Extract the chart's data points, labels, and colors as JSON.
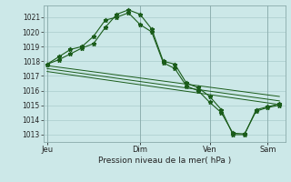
{
  "background_color": "#cce8e8",
  "grid_color": "#aacccc",
  "line_color": "#1a5c1a",
  "title": "Pression niveau de la mer( hPa )",
  "ylim": [
    1012.5,
    1021.8
  ],
  "yticks": [
    1013,
    1014,
    1015,
    1016,
    1017,
    1018,
    1019,
    1020,
    1021
  ],
  "xtick_labels": [
    "Jeu",
    "Dim",
    "Ven",
    "Sam"
  ],
  "xtick_positions": [
    0,
    8,
    14,
    19
  ],
  "xlim": [
    -0.3,
    20.5
  ],
  "series1_x": [
    0,
    1,
    2,
    3,
    4,
    5,
    6,
    7,
    8,
    9,
    10,
    11,
    12,
    13,
    14,
    15,
    16,
    17,
    18,
    19,
    20
  ],
  "series1_y": [
    1017.8,
    1018.1,
    1018.5,
    1018.9,
    1019.2,
    1020.3,
    1021.2,
    1021.5,
    1021.2,
    1020.2,
    1018.0,
    1017.8,
    1016.5,
    1016.2,
    1015.6,
    1014.7,
    1013.0,
    1013.0,
    1014.7,
    1014.9,
    1015.1
  ],
  "series2_x": [
    0,
    1,
    2,
    3,
    4,
    5,
    6,
    7,
    8,
    9,
    10,
    11,
    12,
    13,
    14,
    15,
    16,
    17,
    18,
    19,
    20
  ],
  "series2_y": [
    1017.8,
    1018.3,
    1018.8,
    1019.0,
    1019.7,
    1020.8,
    1021.0,
    1021.3,
    1020.5,
    1020.0,
    1017.9,
    1017.5,
    1016.3,
    1016.0,
    1015.2,
    1014.5,
    1013.1,
    1013.05,
    1014.6,
    1014.85,
    1015.0
  ],
  "series3_x": [
    0,
    20
  ],
  "series3_y": [
    1017.7,
    1015.6
  ],
  "series4_x": [
    0,
    20
  ],
  "series4_y": [
    1017.5,
    1015.3
  ],
  "series5_x": [
    0,
    20
  ],
  "series5_y": [
    1017.3,
    1015.05
  ]
}
